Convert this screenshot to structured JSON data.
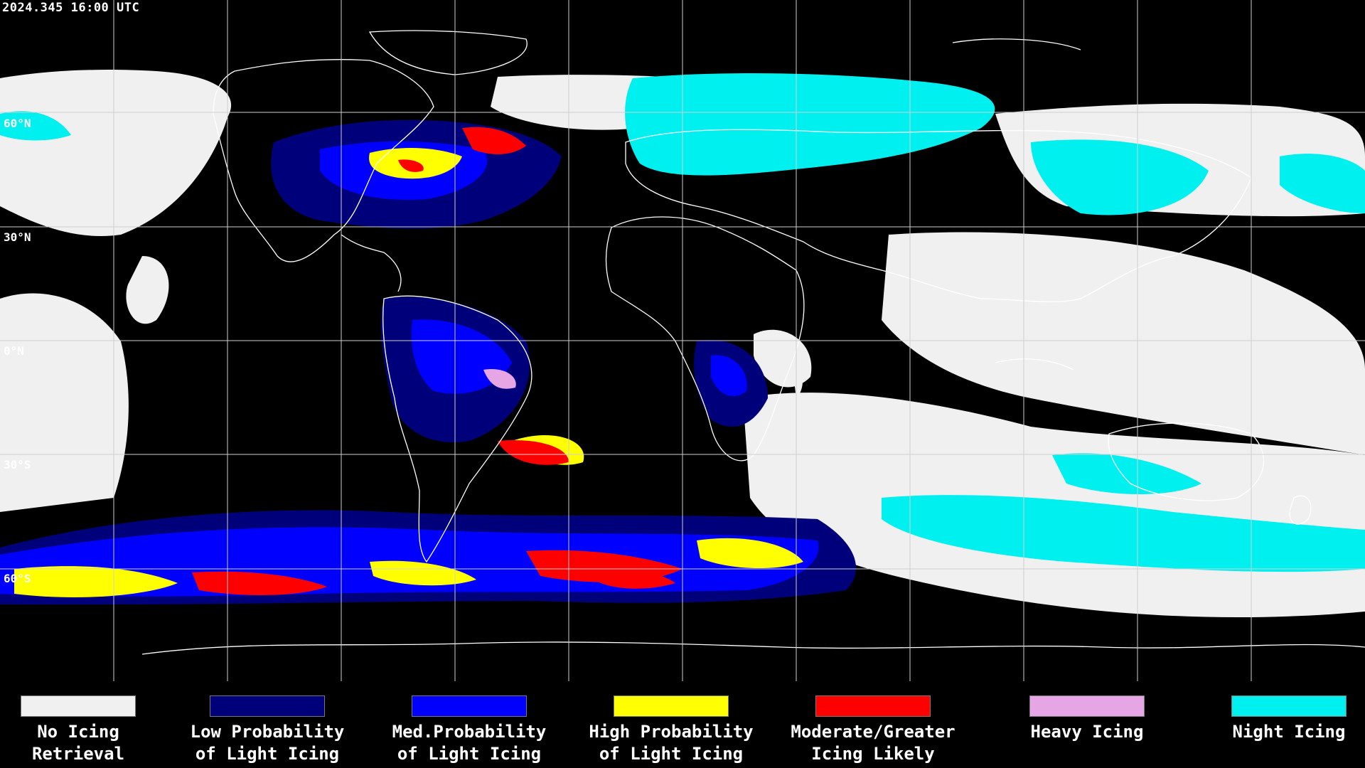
{
  "timestamp": "2024.345 16:00 UTC",
  "lat_labels": [
    "60°N",
    "30°N",
    "0°N",
    "30°S",
    "60°S"
  ],
  "colors": {
    "background": "#000000",
    "no_icing": "#f0f0f0",
    "low": "#00007a",
    "med": "#0000ff",
    "high": "#ffff00",
    "moderate": "#ff0000",
    "heavy": "#e6a6e6",
    "night": "#00f0f0",
    "coast": "#ffffff",
    "grid": "#cfcfcf"
  },
  "legend": [
    {
      "line1": "No Icing",
      "line2": "Retrieval",
      "color": "#f0f0f0"
    },
    {
      "line1": "Low Probability",
      "line2": "of Light Icing",
      "color": "#00007a"
    },
    {
      "line1": "Med.Probability",
      "line2": "of Light Icing",
      "color": "#0000ff"
    },
    {
      "line1": "High Probability",
      "line2": "of Light Icing",
      "color": "#ffff00"
    },
    {
      "line1": "Moderate/Greater",
      "line2": "Icing Likely",
      "color": "#ff0000"
    },
    {
      "line1": "Heavy Icing",
      "line2": "",
      "color": "#e6a6e6"
    },
    {
      "line1": "Night Icing",
      "line2": "",
      "color": "#00f0f0"
    }
  ]
}
